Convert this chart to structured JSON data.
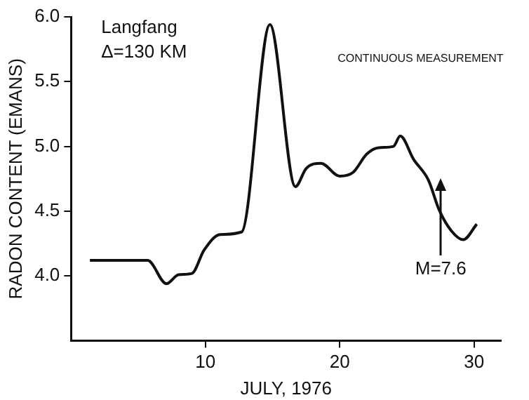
{
  "chart_data": {
    "type": "line",
    "xlabel": "JULY, 1976",
    "ylabel": "RADON CONTENT (EMANS)",
    "x": [
      1.4,
      5.7,
      7.1,
      8.0,
      9.0,
      9.9,
      11.1,
      12.7,
      14.8,
      16.7,
      17.5,
      18.6,
      20.0,
      21.0,
      22.0,
      22.9,
      24.0,
      24.5,
      25.5,
      26.6,
      27.4,
      28.3,
      29.2,
      30.2
    ],
    "values": [
      4.12,
      4.12,
      3.94,
      4.01,
      4.02,
      4.2,
      4.32,
      4.34,
      5.94,
      4.69,
      4.83,
      4.87,
      4.77,
      4.8,
      4.94,
      4.99,
      5.0,
      5.08,
      4.9,
      4.74,
      4.51,
      4.35,
      4.28,
      4.4
    ],
    "color": "#111111",
    "xlim": [
      0,
      32
    ],
    "xticks": [
      10,
      20,
      30
    ],
    "ylim": [
      3.5,
      6.0
    ],
    "yticks": [
      {
        "value": 4,
        "label": "4.0"
      },
      4.5,
      {
        "value": 5,
        "label": "5.0"
      },
      5.5,
      {
        "value": 6,
        "label": "6.0"
      }
    ],
    "grid": false,
    "legend": false,
    "marker": "none",
    "line_style": "solid",
    "annotations": [
      "Langfang",
      "Δ=130 KM",
      "CONTINUOUS MEASUREMENT",
      "M=7.6"
    ]
  }
}
